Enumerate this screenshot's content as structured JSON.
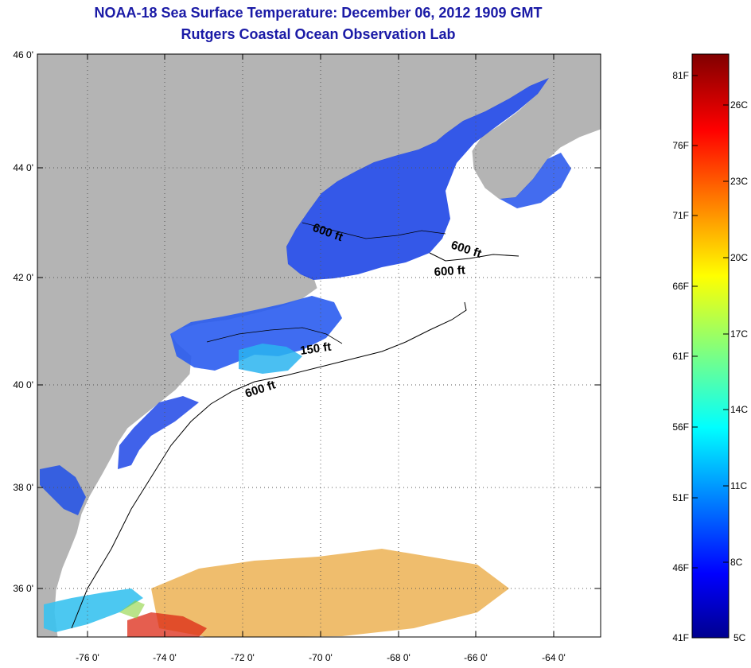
{
  "title": {
    "line1": "NOAA-18 Sea Surface Temperature:  December 06, 2012 1909 GMT",
    "line2": "Rutgers Coastal Ocean Observation Lab"
  },
  "map": {
    "lat_labels": [
      "46 0'",
      "44 0'",
      "42 0'",
      "40 0'",
      "38 0'",
      "36 0'"
    ],
    "lon_labels": [
      "-76 0'",
      "-74 0'",
      "-72 0'",
      "-70 0'",
      "-68 0'",
      "-66 0'",
      "-64 0'"
    ],
    "contour_labels": [
      "600 ft",
      "600 ft",
      "600 ft",
      "150 ft",
      "600 ft"
    ],
    "colors": {
      "land": "#b4b4b4",
      "ocean_no_data": "#ffffff",
      "cold_water": "#1e46e6",
      "coastal_cyan": "#2ab4f0",
      "warm_water": "#e69a1e",
      "hot_water": "#dc2814"
    }
  },
  "colorbar": {
    "fahrenheit_labels": [
      "81F",
      "76F",
      "71F",
      "66F",
      "61F",
      "56F",
      "51F",
      "46F",
      "41F"
    ],
    "celsius_labels": [
      "26C",
      "23C",
      "20C",
      "17C",
      "14C",
      "11C",
      "8C",
      "5C"
    ],
    "colormap": "jet",
    "min_color": "#00008f",
    "max_color": "#800000"
  }
}
